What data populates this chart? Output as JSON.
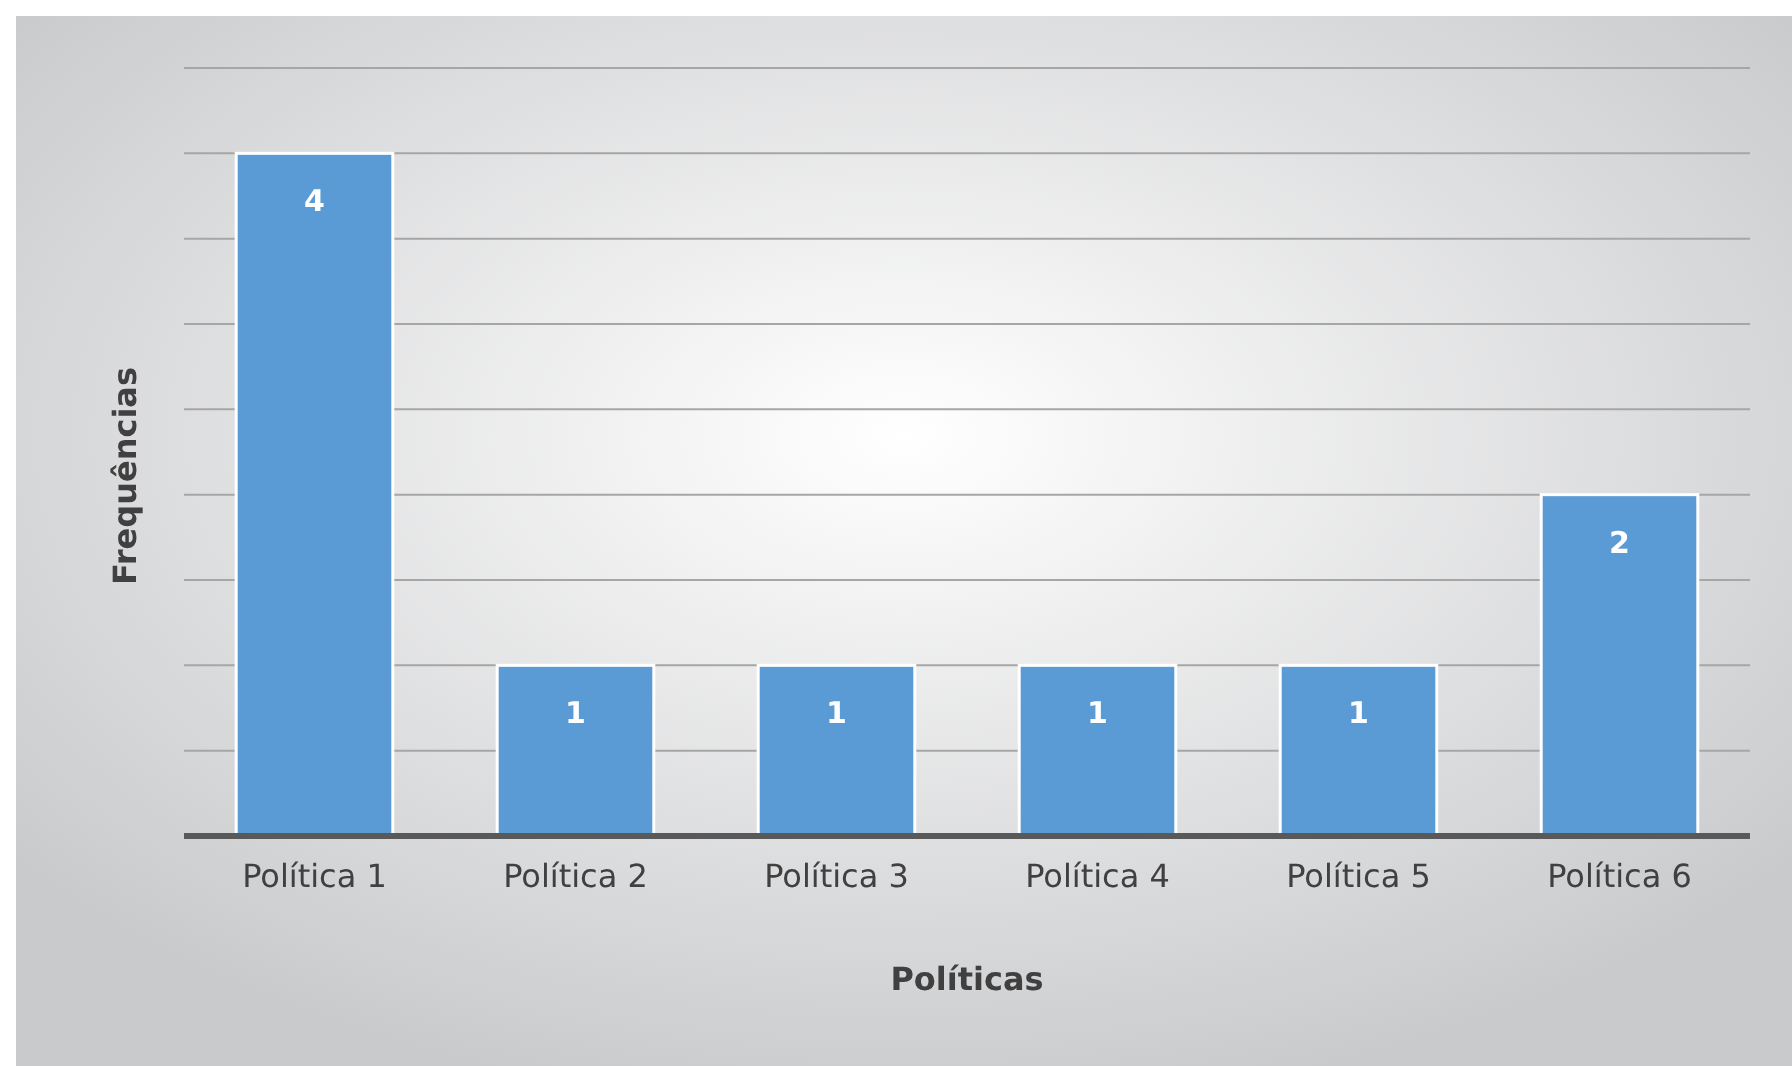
{
  "chart_data": {
    "type": "bar",
    "xlabel": "Políticas",
    "ylabel": "Frequências",
    "categories": [
      "Política 1",
      "Política 2",
      "Política 3",
      "Política 4",
      "Política 5",
      "Política 6"
    ],
    "values": [
      4,
      1,
      1,
      1,
      1,
      2
    ],
    "color": "#5b9bd5",
    "ylim": [
      0,
      4.5
    ],
    "yticks": [
      {
        "value": 0,
        "label": null
      },
      {
        "value": 0.5,
        "label": null
      },
      {
        "value": 1,
        "label": null
      },
      {
        "value": 1.5,
        "label": null
      },
      {
        "value": 2,
        "label": null
      },
      {
        "value": 2.5,
        "label": null
      },
      {
        "value": 3,
        "label": null
      },
      {
        "value": 3.5,
        "label": null
      },
      {
        "value": 4,
        "label": null
      },
      {
        "value": 4.5,
        "label": null
      }
    ],
    "grid": "y",
    "tick_labels": "x",
    "data_labels": true
  }
}
